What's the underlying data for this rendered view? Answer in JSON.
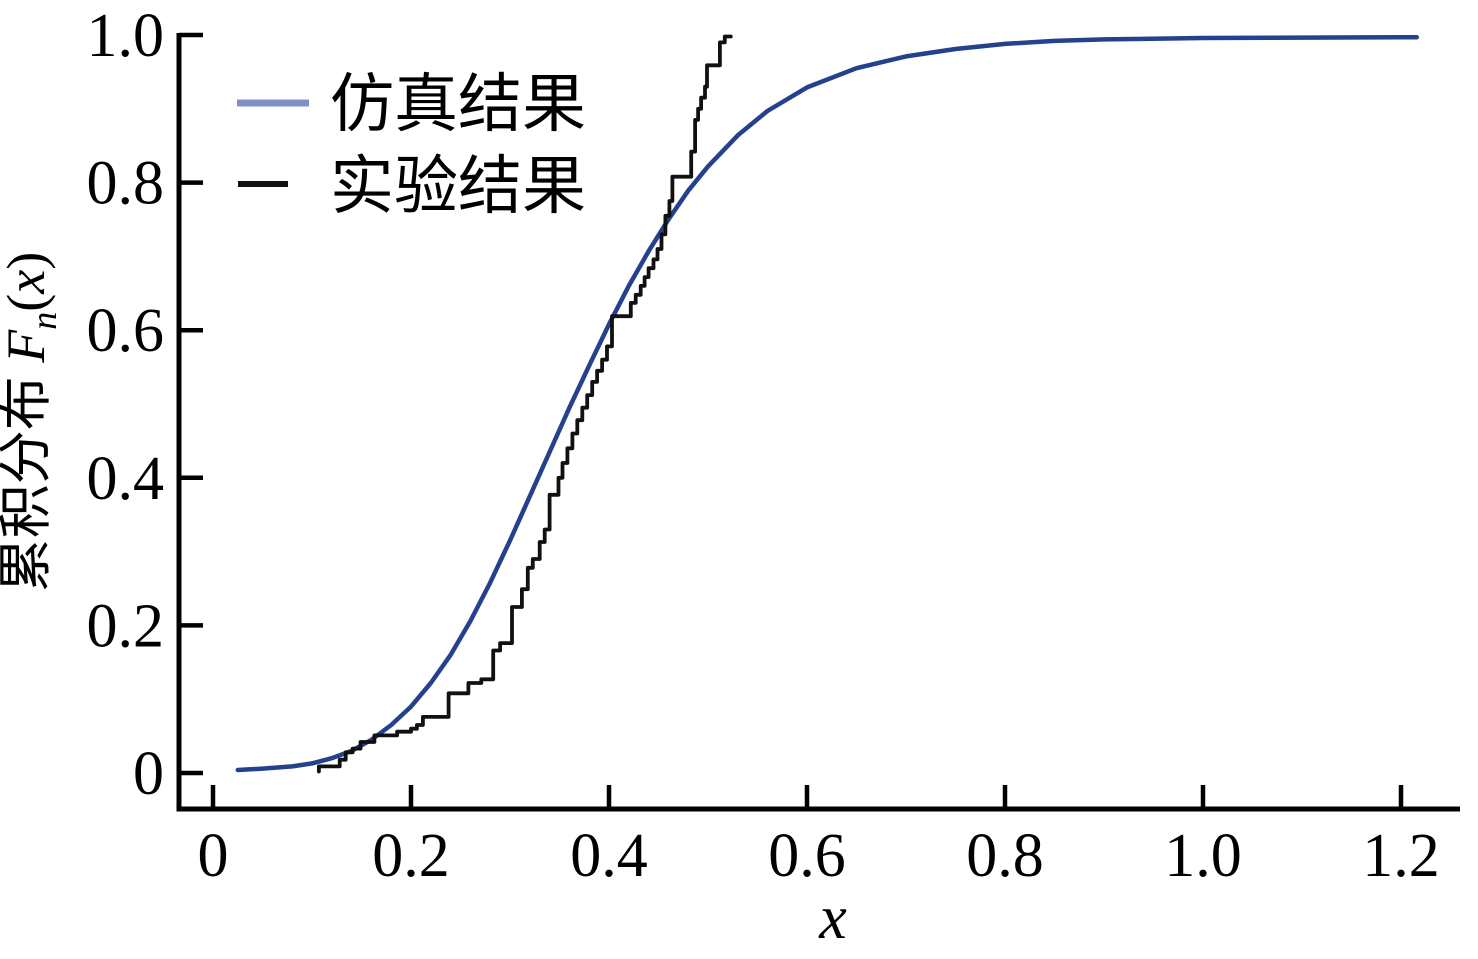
{
  "figure": {
    "background": "#ffffff"
  },
  "chart_data": {
    "type": "line",
    "title": "",
    "xlabel": {
      "var": "x"
    },
    "ylabel": {
      "prefix": "累积分布 ",
      "symbol": "F",
      "subscript": "n",
      "open": "(",
      "var": "x",
      "close": ")"
    },
    "xlim": [
      -0.034,
      1.26
    ],
    "ylim": [
      -0.049,
      1.003
    ],
    "grid": false,
    "legend_position": "top-left",
    "x_ticks": {
      "values": [
        0,
        0.2,
        0.4,
        0.6,
        0.8,
        1.0,
        1.2
      ],
      "labels": [
        "0",
        "0.2",
        "0.4",
        "0.6",
        "0.8",
        "1.0",
        "1.2"
      ]
    },
    "y_ticks": {
      "values": [
        0,
        0.2,
        0.4,
        0.6,
        0.8,
        1.0
      ],
      "labels": [
        "0",
        "0.2",
        "0.4",
        "0.6",
        "0.8",
        "1.0"
      ]
    },
    "series": [
      {
        "name": "仿真结果",
        "type": "smooth-line",
        "color": "#24418e",
        "legend_swatch_color": "#8090c6",
        "line_width": 4.5,
        "points": [
          [
            0.025,
            0.004
          ],
          [
            0.05,
            0.006
          ],
          [
            0.08,
            0.009
          ],
          [
            0.1,
            0.013
          ],
          [
            0.12,
            0.02
          ],
          [
            0.14,
            0.03
          ],
          [
            0.16,
            0.045
          ],
          [
            0.18,
            0.065
          ],
          [
            0.2,
            0.09
          ],
          [
            0.22,
            0.122
          ],
          [
            0.24,
            0.16
          ],
          [
            0.26,
            0.206
          ],
          [
            0.28,
            0.258
          ],
          [
            0.3,
            0.315
          ],
          [
            0.32,
            0.375
          ],
          [
            0.34,
            0.435
          ],
          [
            0.36,
            0.495
          ],
          [
            0.38,
            0.552
          ],
          [
            0.4,
            0.608
          ],
          [
            0.42,
            0.66
          ],
          [
            0.44,
            0.707
          ],
          [
            0.46,
            0.75
          ],
          [
            0.48,
            0.789
          ],
          [
            0.5,
            0.822
          ],
          [
            0.53,
            0.864
          ],
          [
            0.56,
            0.897
          ],
          [
            0.6,
            0.929
          ],
          [
            0.65,
            0.955
          ],
          [
            0.7,
            0.971
          ],
          [
            0.75,
            0.981
          ],
          [
            0.8,
            0.988
          ],
          [
            0.85,
            0.992
          ],
          [
            0.9,
            0.994
          ],
          [
            1.0,
            0.996
          ],
          [
            1.1,
            0.9965
          ],
          [
            1.216,
            0.997
          ]
        ]
      },
      {
        "name": "实验结果",
        "type": "step",
        "color": "#111111",
        "legend_swatch_color": "#111111",
        "line_width": 3.8,
        "points": [
          [
            0.107,
            0.009
          ],
          [
            0.128,
            0.018
          ],
          [
            0.134,
            0.028
          ],
          [
            0.141,
            0.033
          ],
          [
            0.149,
            0.042
          ],
          [
            0.163,
            0.051
          ],
          [
            0.186,
            0.056
          ],
          [
            0.2,
            0.06
          ],
          [
            0.206,
            0.065
          ],
          [
            0.212,
            0.076
          ],
          [
            0.238,
            0.108
          ],
          [
            0.258,
            0.122
          ],
          [
            0.271,
            0.127
          ],
          [
            0.283,
            0.166
          ],
          [
            0.29,
            0.176
          ],
          [
            0.302,
            0.225
          ],
          [
            0.312,
            0.249
          ],
          [
            0.318,
            0.278
          ],
          [
            0.323,
            0.29
          ],
          [
            0.33,
            0.313
          ],
          [
            0.335,
            0.33
          ],
          [
            0.34,
            0.377
          ],
          [
            0.349,
            0.4
          ],
          [
            0.353,
            0.42
          ],
          [
            0.358,
            0.44
          ],
          [
            0.363,
            0.46
          ],
          [
            0.368,
            0.478
          ],
          [
            0.373,
            0.495
          ],
          [
            0.378,
            0.512
          ],
          [
            0.383,
            0.53
          ],
          [
            0.388,
            0.545
          ],
          [
            0.393,
            0.56
          ],
          [
            0.398,
            0.578
          ],
          [
            0.403,
            0.619
          ],
          [
            0.422,
            0.637
          ],
          [
            0.427,
            0.648
          ],
          [
            0.432,
            0.66
          ],
          [
            0.436,
            0.672
          ],
          [
            0.44,
            0.684
          ],
          [
            0.445,
            0.696
          ],
          [
            0.449,
            0.71
          ],
          [
            0.453,
            0.73
          ],
          [
            0.457,
            0.755
          ],
          [
            0.461,
            0.775
          ],
          [
            0.464,
            0.808
          ],
          [
            0.483,
            0.842
          ],
          [
            0.487,
            0.885
          ],
          [
            0.49,
            0.9
          ],
          [
            0.493,
            0.915
          ],
          [
            0.497,
            0.93
          ],
          [
            0.499,
            0.959
          ],
          [
            0.512,
            0.99
          ],
          [
            0.517,
            0.998
          ]
        ]
      }
    ]
  }
}
